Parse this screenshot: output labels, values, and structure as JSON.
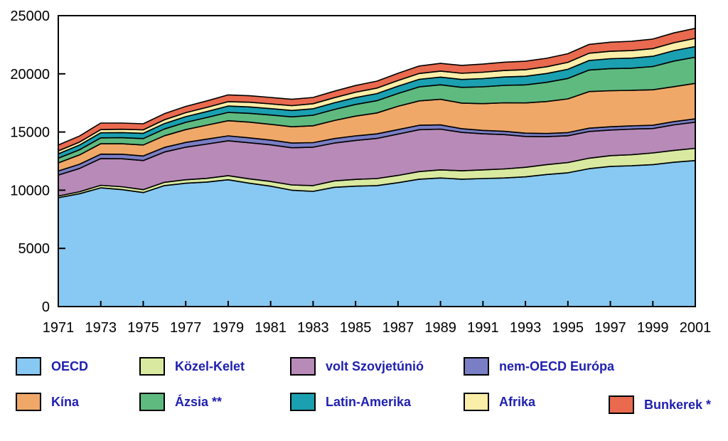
{
  "chart_data": {
    "type": "area",
    "stacked": true,
    "title": "",
    "xlabel": "",
    "ylabel": "",
    "ylim": [
      0,
      25000
    ],
    "yticks": [
      0,
      5000,
      10000,
      15000,
      20000,
      25000
    ],
    "xtick_labels": [
      "1971",
      "1973",
      "1975",
      "1977",
      "1979",
      "1981",
      "1983",
      "1985",
      "1987",
      "1989",
      "1991",
      "1993",
      "1995",
      "1997",
      "1999",
      "2001"
    ],
    "x": [
      1971,
      1972,
      1973,
      1974,
      1975,
      1976,
      1977,
      1978,
      1979,
      1980,
      1981,
      1982,
      1983,
      1984,
      1985,
      1986,
      1987,
      1988,
      1989,
      1990,
      1991,
      1992,
      1993,
      1994,
      1995,
      1996,
      1997,
      1998,
      1999,
      2000,
      2001
    ],
    "legend_position": "bottom",
    "series": [
      {
        "name": "OECD",
        "color": "#87c9f2",
        "values": [
          9350,
          9700,
          10200,
          10050,
          9800,
          10400,
          10600,
          10700,
          10900,
          10600,
          10350,
          10000,
          9900,
          10250,
          10350,
          10400,
          10650,
          10950,
          11050,
          10950,
          11000,
          11050,
          11150,
          11350,
          11500,
          11850,
          12050,
          12100,
          12200,
          12400,
          12550
        ]
      },
      {
        "name": "Közel-Kelet",
        "color": "#d9eaa0",
        "values": [
          150,
          170,
          220,
          250,
          250,
          280,
          300,
          320,
          350,
          380,
          400,
          450,
          500,
          550,
          580,
          600,
          620,
          650,
          700,
          720,
          750,
          780,
          820,
          850,
          880,
          900,
          920,
          950,
          1000,
          1020,
          1050
        ]
      },
      {
        "name": "volt Szovjetúnió",
        "color": "#b88ab8",
        "values": [
          1800,
          2000,
          2300,
          2400,
          2500,
          2600,
          2800,
          2950,
          3000,
          3100,
          3150,
          3200,
          3300,
          3250,
          3350,
          3450,
          3550,
          3600,
          3500,
          3300,
          3100,
          2950,
          2650,
          2400,
          2300,
          2300,
          2200,
          2200,
          2100,
          2200,
          2250
        ]
      },
      {
        "name": "nem-OECD Európa",
        "color": "#7a7ec4",
        "values": [
          350,
          360,
          380,
          390,
          390,
          400,
          410,
          420,
          420,
          420,
          410,
          400,
          390,
          390,
          390,
          390,
          390,
          380,
          360,
          320,
          290,
          280,
          280,
          270,
          270,
          280,
          280,
          280,
          280,
          280,
          280
        ]
      },
      {
        "name": "Kína",
        "color": "#f0a868",
        "values": [
          700,
          800,
          900,
          900,
          950,
          1000,
          1100,
          1200,
          1300,
          1350,
          1350,
          1400,
          1450,
          1550,
          1700,
          1800,
          2000,
          2100,
          2200,
          2200,
          2300,
          2450,
          2600,
          2750,
          2900,
          3150,
          3100,
          3050,
          3050,
          3000,
          3050
        ]
      },
      {
        "name": "Ázsia **",
        "color": "#5fba80",
        "values": [
          400,
          450,
          500,
          520,
          550,
          580,
          620,
          660,
          720,
          760,
          800,
          850,
          900,
          950,
          1000,
          1050,
          1100,
          1200,
          1250,
          1350,
          1450,
          1500,
          1550,
          1650,
          1750,
          1850,
          1900,
          1900,
          2000,
          2200,
          2250
        ]
      },
      {
        "name": "Latin-Amerika",
        "color": "#1aa0b0",
        "values": [
          380,
          400,
          430,
          440,
          450,
          470,
          490,
          510,
          540,
          550,
          550,
          550,
          560,
          570,
          590,
          610,
          630,
          650,
          660,
          680,
          700,
          720,
          740,
          760,
          790,
          820,
          850,
          870,
          880,
          900,
          920
        ]
      },
      {
        "name": "Afrika",
        "color": "#fbeea8",
        "values": [
          250,
          260,
          280,
          290,
          300,
          320,
          340,
          360,
          380,
          400,
          410,
          420,
          430,
          440,
          460,
          470,
          490,
          500,
          520,
          530,
          550,
          560,
          570,
          580,
          600,
          620,
          640,
          650,
          660,
          680,
          700
        ]
      },
      {
        "name": "Bunkerek *",
        "color": "#e96a4f",
        "values": [
          500,
          520,
          560,
          530,
          520,
          530,
          540,
          560,
          580,
          560,
          550,
          540,
          540,
          560,
          580,
          600,
          620,
          640,
          660,
          680,
          700,
          710,
          720,
          730,
          740,
          760,
          780,
          800,
          820,
          840,
          860
        ]
      }
    ]
  }
}
